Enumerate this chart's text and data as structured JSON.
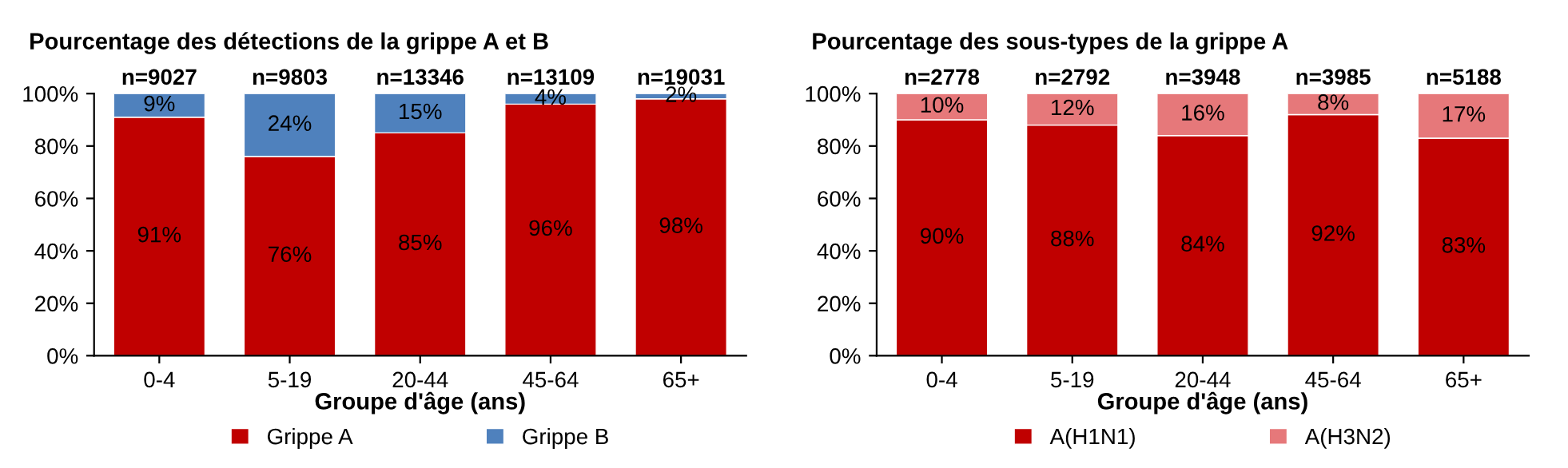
{
  "chart_data": [
    {
      "type": "bar",
      "title": "Pourcentage des détections de la grippe A et B",
      "xlabel": "Groupe d'âge (ans)",
      "categories": [
        "0-4",
        "5-19",
        "20-44",
        "45-64",
        "65+"
      ],
      "stacked": true,
      "legend": "bottom",
      "grid": false,
      "ylim": [
        0,
        100
      ],
      "yticks": [
        {
          "value": 0,
          "label": "0%"
        },
        {
          "value": 20,
          "label": "20%"
        },
        {
          "value": 40,
          "label": "40%"
        },
        {
          "value": 60,
          "label": "60%"
        },
        {
          "value": 80,
          "label": "80%"
        },
        {
          "value": 100,
          "label": "100%"
        }
      ],
      "annotations": [
        {
          "text": "n=9027",
          "x": "0-4",
          "y": 100
        },
        {
          "text": "n=9803",
          "x": "5-19",
          "y": 100
        },
        {
          "text": "n=13346",
          "x": "20-44",
          "y": 100
        },
        {
          "text": "n=13109",
          "x": "45-64",
          "y": 100
        },
        {
          "text": "n=19031",
          "x": "65+",
          "y": 100
        }
      ],
      "series": [
        {
          "name": "Grippe A",
          "color": "#c00000",
          "values": [
            91,
            76,
            85,
            96,
            98
          ],
          "value_labels": [
            "91%",
            "76%",
            "85%",
            "96%",
            "98%"
          ]
        },
        {
          "name": "Grippe B",
          "color": "#4f81bd",
          "values": [
            9,
            24,
            15,
            4,
            2
          ],
          "value_labels": [
            "9%",
            "24%",
            "15%",
            "4%",
            "2%"
          ]
        }
      ]
    },
    {
      "type": "bar",
      "title": "Pourcentage des sous-types de la grippe A",
      "xlabel": "Groupe d'âge (ans)",
      "categories": [
        "0-4",
        "5-19",
        "20-44",
        "45-64",
        "65+"
      ],
      "stacked": true,
      "legend": "bottom",
      "grid": false,
      "ylim": [
        0,
        100
      ],
      "yticks": [
        {
          "value": 0,
          "label": "0%"
        },
        {
          "value": 20,
          "label": "20%"
        },
        {
          "value": 40,
          "label": "40%"
        },
        {
          "value": 60,
          "label": "60%"
        },
        {
          "value": 80,
          "label": "80%"
        },
        {
          "value": 100,
          "label": "100%"
        }
      ],
      "annotations": [
        {
          "text": "n=2778",
          "x": "0-4",
          "y": 100
        },
        {
          "text": "n=2792",
          "x": "5-19",
          "y": 100
        },
        {
          "text": "n=3948",
          "x": "20-44",
          "y": 100
        },
        {
          "text": "n=3985",
          "x": "45-64",
          "y": 100
        },
        {
          "text": "n=5188",
          "x": "65+",
          "y": 100
        }
      ],
      "series": [
        {
          "name": "A(H1N1)",
          "color": "#c00000",
          "values": [
            90,
            88,
            84,
            92,
            83
          ],
          "value_labels": [
            "90%",
            "88%",
            "84%",
            "92%",
            "83%"
          ]
        },
        {
          "name": "A(H3N2)",
          "color": "#e6787a",
          "values": [
            10,
            12,
            16,
            8,
            17
          ],
          "value_labels": [
            "10%",
            "12%",
            "16%",
            "8%",
            "17%"
          ]
        }
      ]
    }
  ]
}
